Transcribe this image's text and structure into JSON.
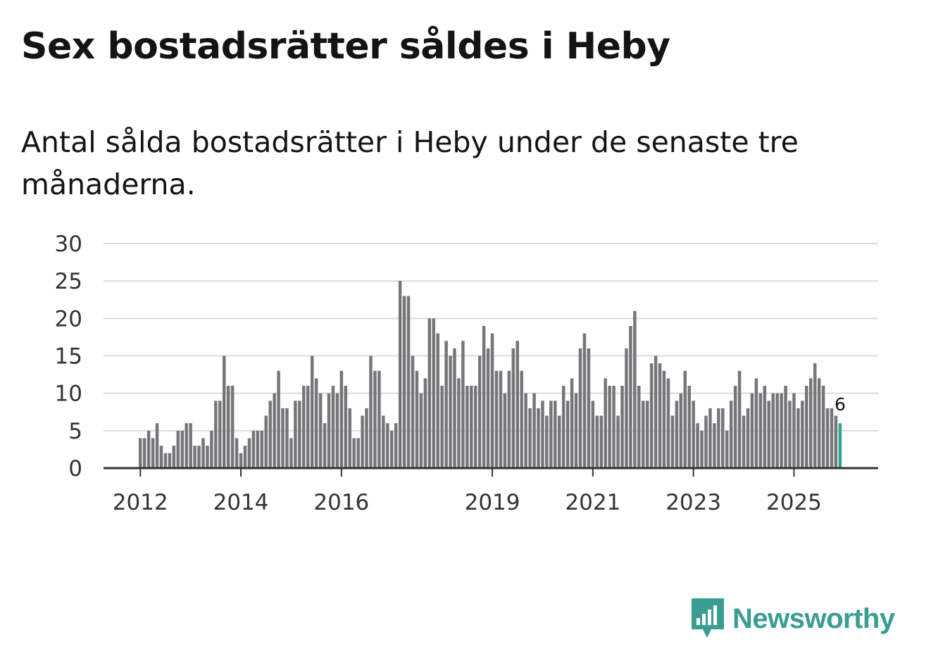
{
  "title": "Sex bostadsrätter såldes i Heby",
  "subtitle": "Antal sålda bostadsrätter i Heby under de senaste tre månaderna.",
  "brand": {
    "name": "Newsworthy",
    "color": "#3a9d91",
    "icon": "newsworthy-logo-icon"
  },
  "colors": {
    "bar": "#76757a",
    "highlight": "#2ca58f",
    "grid": "#dcdcdc",
    "axis": "#333333"
  },
  "chart_data": {
    "type": "bar",
    "title": "Sex bostadsrätter såldes i Heby",
    "xlabel": "",
    "ylabel": "",
    "ylim": [
      0,
      30
    ],
    "yticks": [
      0,
      5,
      10,
      15,
      20,
      25,
      30
    ],
    "x_start": "2012-01",
    "xticks": [
      {
        "label": "2012",
        "index": 0
      },
      {
        "label": "2014",
        "index": 24
      },
      {
        "label": "2016",
        "index": 48
      },
      {
        "label": "2019",
        "index": 84
      },
      {
        "label": "2021",
        "index": 108
      },
      {
        "label": "2023",
        "index": 132
      },
      {
        "label": "2025",
        "index": 156
      }
    ],
    "values": [
      4,
      4,
      5,
      4,
      6,
      3,
      2,
      2,
      3,
      5,
      5,
      6,
      6,
      3,
      3,
      4,
      3,
      5,
      9,
      9,
      15,
      11,
      11,
      4,
      2,
      3,
      4,
      5,
      5,
      5,
      7,
      9,
      10,
      13,
      8,
      8,
      4,
      9,
      9,
      11,
      11,
      15,
      12,
      10,
      6,
      10,
      11,
      10,
      13,
      11,
      8,
      4,
      4,
      7,
      8,
      15,
      13,
      13,
      7,
      6,
      5,
      6,
      25,
      23,
      23,
      15,
      13,
      10,
      12,
      20,
      20,
      18,
      11,
      17,
      15,
      16,
      12,
      17,
      11,
      11,
      11,
      15,
      19,
      16,
      18,
      13,
      13,
      10,
      13,
      16,
      17,
      13,
      10,
      8,
      10,
      8,
      9,
      7,
      9,
      9,
      7,
      11,
      9,
      12,
      10,
      16,
      18,
      16,
      9,
      7,
      7,
      12,
      11,
      11,
      7,
      11,
      16,
      19,
      21,
      11,
      9,
      9,
      14,
      15,
      14,
      13,
      12,
      7,
      9,
      10,
      13,
      11,
      9,
      6,
      5,
      7,
      8,
      6,
      8,
      8,
      5,
      9,
      11,
      13,
      7,
      8,
      10,
      12,
      10,
      11,
      9,
      10,
      10,
      10,
      11,
      9,
      10,
      8,
      9,
      11,
      12,
      14,
      12,
      11,
      8,
      8,
      7,
      6
    ],
    "highlight_last": true,
    "last_value_label": "6"
  }
}
